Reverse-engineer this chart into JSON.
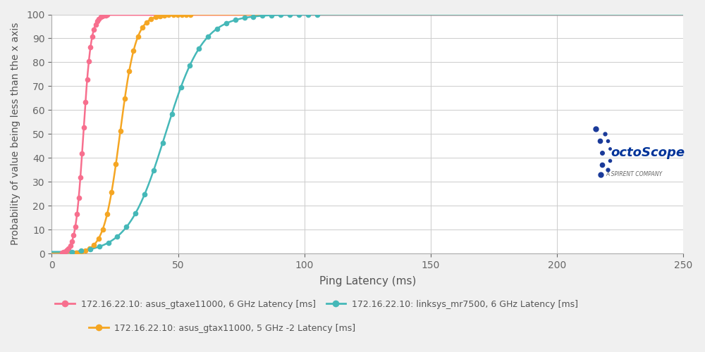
{
  "title": "",
  "xlabel": "Ping Latency (ms)",
  "ylabel": "Probability of value being less than the x axis",
  "xlim": [
    0,
    250
  ],
  "ylim": [
    0,
    100
  ],
  "xticks": [
    0,
    50,
    100,
    150,
    200,
    250
  ],
  "yticks": [
    0,
    10,
    20,
    30,
    40,
    50,
    60,
    70,
    80,
    90,
    100
  ],
  "background_color": "#f0f0f0",
  "plot_bg_color": "#ffffff",
  "grid_color": "#cccccc",
  "series": [
    {
      "label": "172.16.22.10: asus_gtaxe11000, 6 GHz Latency [ms]",
      "color": "#f76f8e",
      "xmid": 12.5,
      "k": 0.65,
      "x0": 4,
      "x1": 22
    },
    {
      "label": "172.16.22.10: asus_gtax11000, 5 GHz -2 Latency [ms]",
      "color": "#f5a623",
      "xmid": 27,
      "k": 0.32,
      "x0": 8,
      "x1": 55
    },
    {
      "label": "172.16.22.10: linksys_mr7500, 6 GHz Latency [ms]",
      "color": "#45b8b8",
      "xmid": 45,
      "k": 0.135,
      "x0": 8,
      "x1": 105
    }
  ],
  "marker_size": 5.5,
  "line_width": 1.8,
  "n_points": 300,
  "n_markers": 28,
  "legend_row1": [
    {
      "label": "172.16.22.10: asus_gtaxe11000, 6 GHz Latency [ms]",
      "color": "#f76f8e"
    },
    {
      "label": "172.16.22.10: linksys_mr7500, 6 GHz Latency [ms]",
      "color": "#45b8b8"
    }
  ],
  "legend_row2": [
    {
      "label": "172.16.22.10: asus_gtax11000, 5 GHz -2 Latency [ms]",
      "color": "#f5a623"
    }
  ]
}
